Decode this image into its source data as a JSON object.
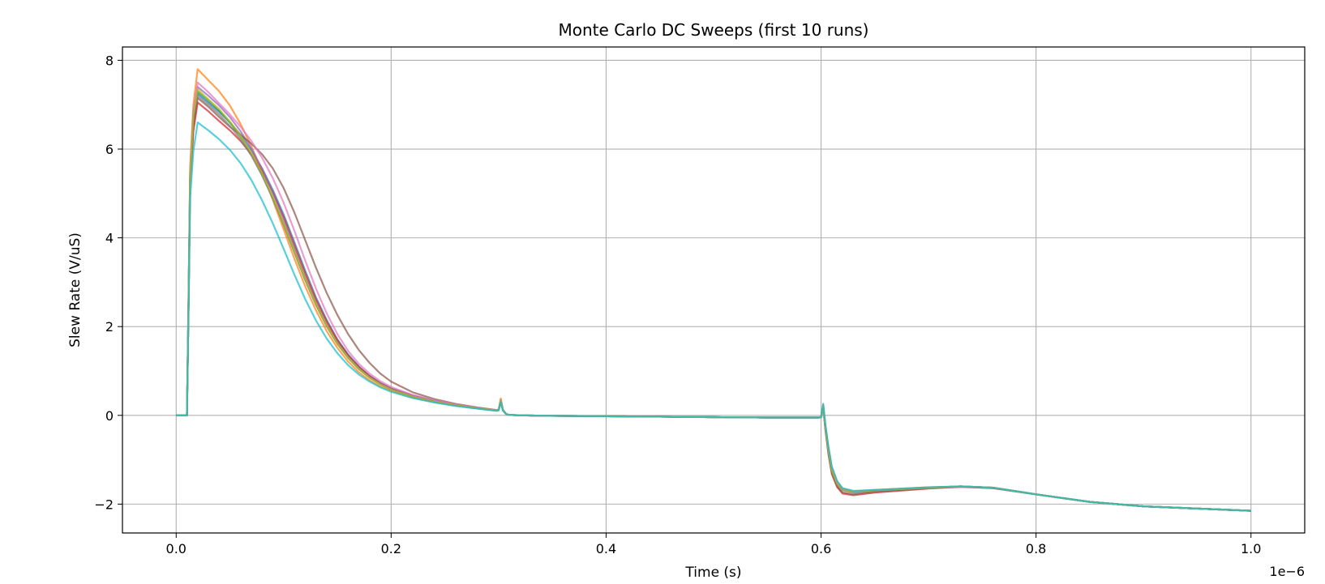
{
  "chart_data": {
    "type": "line",
    "title": "Monte Carlo DC Sweeps (first 10 runs)",
    "xlabel": "Time (s)",
    "ylabel": "Slew Rate (V/uS)",
    "x_offset_text": "1e−6",
    "xlim": [
      -0.05,
      1.05
    ],
    "ylim": [
      -2.65,
      8.3
    ],
    "xticks": [
      0.0,
      0.2,
      0.4,
      0.6,
      0.8,
      1.0
    ],
    "xtick_labels": [
      "0.0",
      "0.2",
      "0.4",
      "0.6",
      "0.8",
      "1.0"
    ],
    "yticks": [
      -2,
      0,
      2,
      4,
      6,
      8
    ],
    "ytick_labels": [
      "−2",
      "0",
      "2",
      "4",
      "6",
      "8"
    ],
    "grid": true,
    "legend": "none",
    "x": [
      0.0,
      0.005,
      0.01,
      0.0115,
      0.013,
      0.016,
      0.02,
      0.03,
      0.04,
      0.05,
      0.06,
      0.07,
      0.08,
      0.09,
      0.1,
      0.11,
      0.12,
      0.13,
      0.14,
      0.15,
      0.16,
      0.17,
      0.18,
      0.19,
      0.2,
      0.22,
      0.24,
      0.26,
      0.28,
      0.298,
      0.3,
      0.302,
      0.304,
      0.307,
      0.31,
      0.32,
      0.35,
      0.4,
      0.45,
      0.5,
      0.55,
      0.598,
      0.6,
      0.602,
      0.604,
      0.607,
      0.61,
      0.615,
      0.62,
      0.63,
      0.65,
      0.7,
      0.73,
      0.76,
      0.8,
      0.85,
      0.9,
      0.95,
      1.0
    ],
    "series": [
      {
        "color": "#1f77b4",
        "values": [
          0.0,
          0.0,
          0.0,
          2.5,
          5.4,
          6.7,
          7.25,
          7.05,
          6.84,
          6.6,
          6.32,
          5.97,
          5.56,
          5.07,
          4.52,
          3.9,
          3.26,
          2.66,
          2.15,
          1.71,
          1.37,
          1.1,
          0.89,
          0.73,
          0.61,
          0.45,
          0.33,
          0.24,
          0.17,
          0.11,
          0.12,
          0.35,
          0.12,
          0.03,
          0.01,
          0.0,
          -0.01,
          -0.02,
          -0.03,
          -0.04,
          -0.05,
          -0.05,
          -0.04,
          0.22,
          -0.25,
          -0.8,
          -1.22,
          -1.52,
          -1.66,
          -1.72,
          -1.69,
          -1.63,
          -1.6,
          -1.63,
          -1.78,
          -1.95,
          -2.05,
          -2.1,
          -2.15
        ]
      },
      {
        "color": "#ff7f0e",
        "values": [
          0.0,
          0.0,
          0.0,
          2.7,
          5.6,
          7.0,
          7.8,
          7.55,
          7.3,
          6.98,
          6.56,
          6.06,
          5.48,
          4.85,
          4.19,
          3.53,
          2.91,
          2.37,
          1.9,
          1.52,
          1.21,
          0.97,
          0.79,
          0.65,
          0.55,
          0.4,
          0.3,
          0.22,
          0.16,
          0.11,
          0.12,
          0.38,
          0.12,
          0.03,
          0.01,
          0.0,
          -0.01,
          -0.02,
          -0.03,
          -0.04,
          -0.05,
          -0.05,
          -0.04,
          0.25,
          -0.22,
          -0.75,
          -1.18,
          -1.5,
          -1.65,
          -1.71,
          -1.68,
          -1.62,
          -1.6,
          -1.63,
          -1.78,
          -1.95,
          -2.05,
          -2.1,
          -2.15
        ]
      },
      {
        "color": "#2ca02c",
        "values": [
          0.0,
          0.0,
          0.0,
          2.5,
          5.3,
          6.6,
          7.3,
          7.1,
          6.87,
          6.6,
          6.28,
          5.88,
          5.42,
          4.89,
          4.3,
          3.67,
          3.05,
          2.49,
          2.01,
          1.61,
          1.29,
          1.04,
          0.85,
          0.7,
          0.58,
          0.42,
          0.31,
          0.23,
          0.16,
          0.11,
          0.12,
          0.33,
          0.11,
          0.03,
          0.01,
          0.0,
          -0.01,
          -0.02,
          -0.03,
          -0.04,
          -0.05,
          -0.05,
          -0.04,
          0.2,
          -0.27,
          -0.82,
          -1.25,
          -1.54,
          -1.67,
          -1.73,
          -1.7,
          -1.63,
          -1.6,
          -1.63,
          -1.78,
          -1.95,
          -2.05,
          -2.1,
          -2.15
        ]
      },
      {
        "color": "#d62728",
        "values": [
          0.0,
          0.0,
          0.0,
          2.4,
          5.2,
          6.4,
          7.05,
          6.85,
          6.63,
          6.42,
          6.18,
          5.88,
          5.5,
          5.02,
          4.46,
          3.83,
          3.2,
          2.61,
          2.11,
          1.69,
          1.35,
          1.09,
          0.88,
          0.72,
          0.6,
          0.44,
          0.32,
          0.23,
          0.16,
          0.11,
          0.12,
          0.3,
          0.11,
          0.03,
          0.01,
          0.0,
          -0.01,
          -0.02,
          -0.03,
          -0.04,
          -0.05,
          -0.05,
          -0.04,
          0.18,
          -0.32,
          -0.9,
          -1.32,
          -1.62,
          -1.76,
          -1.8,
          -1.74,
          -1.65,
          -1.61,
          -1.64,
          -1.78,
          -1.95,
          -2.05,
          -2.1,
          -2.15
        ]
      },
      {
        "color": "#9467bd",
        "values": [
          0.0,
          0.0,
          0.0,
          2.6,
          5.5,
          6.8,
          7.4,
          7.2,
          6.98,
          6.72,
          6.4,
          6.01,
          5.55,
          5.01,
          4.4,
          3.75,
          3.11,
          2.53,
          2.03,
          1.63,
          1.31,
          1.05,
          0.86,
          0.71,
          0.59,
          0.43,
          0.32,
          0.23,
          0.16,
          0.11,
          0.12,
          0.32,
          0.11,
          0.03,
          0.01,
          0.0,
          -0.01,
          -0.02,
          -0.03,
          -0.04,
          -0.05,
          -0.05,
          -0.04,
          0.21,
          -0.26,
          -0.8,
          -1.23,
          -1.53,
          -1.67,
          -1.72,
          -1.69,
          -1.63,
          -1.6,
          -1.63,
          -1.78,
          -1.95,
          -2.05,
          -2.1,
          -2.15
        ]
      },
      {
        "color": "#8c564b",
        "values": [
          0.0,
          0.0,
          0.0,
          2.5,
          5.3,
          6.5,
          7.15,
          6.95,
          6.72,
          6.5,
          6.32,
          6.12,
          5.88,
          5.56,
          5.12,
          4.57,
          3.95,
          3.33,
          2.76,
          2.26,
          1.83,
          1.47,
          1.18,
          0.94,
          0.76,
          0.52,
          0.37,
          0.26,
          0.18,
          0.12,
          0.13,
          0.33,
          0.12,
          0.03,
          0.01,
          0.0,
          -0.01,
          -0.02,
          -0.03,
          -0.04,
          -0.05,
          -0.05,
          -0.04,
          0.2,
          -0.3,
          -0.87,
          -1.3,
          -1.6,
          -1.74,
          -1.78,
          -1.72,
          -1.64,
          -1.61,
          -1.64,
          -1.78,
          -1.95,
          -2.05,
          -2.1,
          -2.15
        ]
      },
      {
        "color": "#e377c2",
        "values": [
          0.0,
          0.0,
          0.0,
          2.6,
          5.5,
          6.85,
          7.5,
          7.28,
          7.03,
          6.78,
          6.5,
          6.18,
          5.8,
          5.34,
          4.79,
          4.16,
          3.49,
          2.86,
          2.3,
          1.83,
          1.45,
          1.16,
          0.94,
          0.77,
          0.64,
          0.46,
          0.34,
          0.25,
          0.17,
          0.11,
          0.12,
          0.34,
          0.12,
          0.03,
          0.01,
          0.0,
          -0.01,
          -0.02,
          -0.03,
          -0.04,
          -0.05,
          -0.05,
          -0.04,
          0.22,
          -0.25,
          -0.78,
          -1.2,
          -1.51,
          -1.66,
          -1.72,
          -1.69,
          -1.63,
          -1.6,
          -1.63,
          -1.78,
          -1.95,
          -2.05,
          -2.1,
          -2.15
        ]
      },
      {
        "color": "#7f7f7f",
        "values": [
          0.0,
          0.0,
          0.0,
          2.5,
          5.4,
          6.7,
          7.2,
          7.0,
          6.78,
          6.52,
          6.22,
          5.85,
          5.4,
          4.88,
          4.3,
          3.68,
          3.06,
          2.5,
          2.02,
          1.62,
          1.3,
          1.05,
          0.85,
          0.7,
          0.58,
          0.42,
          0.31,
          0.23,
          0.16,
          0.11,
          0.12,
          0.31,
          0.11,
          0.03,
          0.01,
          0.0,
          -0.01,
          -0.02,
          -0.03,
          -0.04,
          -0.05,
          -0.05,
          -0.04,
          0.19,
          -0.28,
          -0.84,
          -1.26,
          -1.56,
          -1.69,
          -1.74,
          -1.7,
          -1.63,
          -1.6,
          -1.63,
          -1.78,
          -1.95,
          -2.05,
          -2.1,
          -2.15
        ]
      },
      {
        "color": "#bcbd22",
        "values": [
          0.0,
          0.0,
          0.0,
          2.55,
          5.45,
          6.75,
          7.35,
          7.12,
          6.9,
          6.62,
          6.3,
          5.91,
          5.45,
          4.92,
          4.33,
          3.7,
          3.08,
          2.51,
          2.03,
          1.62,
          1.3,
          1.05,
          0.85,
          0.7,
          0.58,
          0.42,
          0.31,
          0.23,
          0.16,
          0.11,
          0.12,
          0.33,
          0.11,
          0.03,
          0.01,
          0.0,
          -0.01,
          -0.02,
          -0.03,
          -0.04,
          -0.05,
          -0.05,
          -0.04,
          0.21,
          -0.26,
          -0.81,
          -1.24,
          -1.54,
          -1.67,
          -1.72,
          -1.69,
          -1.63,
          -1.6,
          -1.63,
          -1.78,
          -1.95,
          -2.05,
          -2.1,
          -2.15
        ]
      },
      {
        "color": "#17becf",
        "values": [
          0.0,
          0.0,
          0.0,
          2.3,
          4.9,
          5.95,
          6.6,
          6.42,
          6.22,
          5.98,
          5.68,
          5.3,
          4.84,
          4.32,
          3.75,
          3.17,
          2.62,
          2.14,
          1.73,
          1.4,
          1.13,
          0.92,
          0.76,
          0.63,
          0.53,
          0.39,
          0.29,
          0.21,
          0.15,
          0.1,
          0.11,
          0.3,
          0.11,
          0.03,
          0.01,
          0.0,
          -0.01,
          -0.02,
          -0.03,
          -0.04,
          -0.05,
          -0.05,
          -0.04,
          0.26,
          -0.2,
          -0.72,
          -1.15,
          -1.48,
          -1.64,
          -1.7,
          -1.68,
          -1.62,
          -1.6,
          -1.63,
          -1.78,
          -1.95,
          -2.05,
          -2.1,
          -2.15
        ]
      }
    ]
  }
}
